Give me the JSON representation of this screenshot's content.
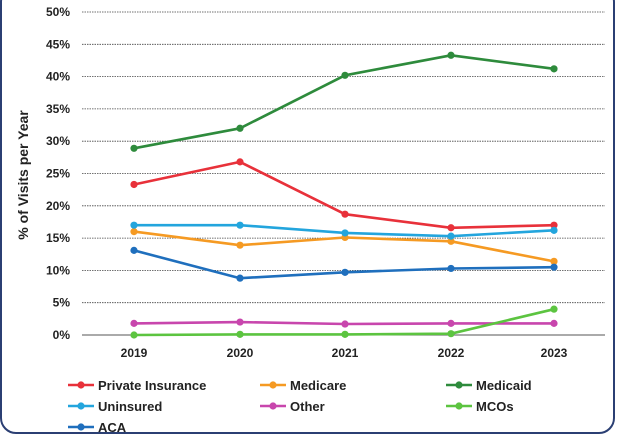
{
  "chart_data": {
    "type": "line",
    "title": "",
    "xlabel": "",
    "ylabel": "% of Visits per Year",
    "x": [
      "2019",
      "2020",
      "2021",
      "2022",
      "2023"
    ],
    "ylim": [
      0,
      50
    ],
    "yticks": [
      "0%",
      "5%",
      "10%",
      "15%",
      "20%",
      "25%",
      "30%",
      "35%",
      "40%",
      "45%",
      "50%"
    ],
    "grid": "horizontal",
    "legend_position": "bottom",
    "series": [
      {
        "name": "Private Insurance",
        "color": "#e8313a",
        "values": [
          23.3,
          26.8,
          18.7,
          16.6,
          17.0
        ]
      },
      {
        "name": "Medicare",
        "color": "#f59a23",
        "values": [
          16.0,
          13.9,
          15.1,
          14.5,
          11.4
        ]
      },
      {
        "name": "Medicaid",
        "color": "#2e8b3c",
        "values": [
          28.9,
          32.0,
          40.2,
          43.3,
          41.2
        ]
      },
      {
        "name": "Uninsured",
        "color": "#23a5dd",
        "values": [
          17.0,
          17.0,
          15.8,
          15.3,
          16.2
        ]
      },
      {
        "name": "Other",
        "color": "#c846ad",
        "values": [
          1.8,
          2.0,
          1.7,
          1.8,
          1.8
        ]
      },
      {
        "name": "MCOs",
        "color": "#5cc440",
        "values": [
          0.0,
          0.1,
          0.1,
          0.2,
          4.0
        ]
      },
      {
        "name": "ACA",
        "color": "#1f6fbd",
        "values": [
          13.1,
          8.8,
          9.7,
          10.3,
          10.5
        ]
      }
    ]
  }
}
